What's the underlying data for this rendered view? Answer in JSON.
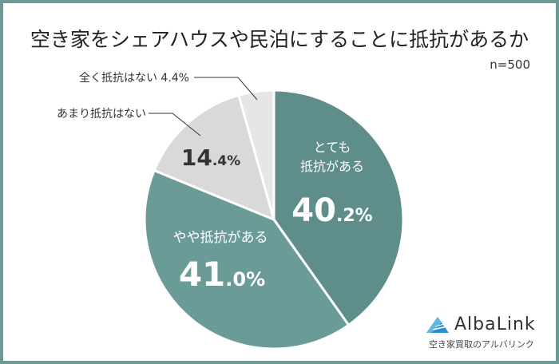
{
  "title": "空き家をシェアハウスや民泊にすることに抵抗があるか",
  "sample_size": "n=500",
  "colors": {
    "border": "#6b9995",
    "slice_1": "#5f8d89",
    "slice_2": "#6a9b97",
    "slice_3": "#d9d9d9",
    "slice_4": "#e6e6e6"
  },
  "labels": {
    "s1_line1": "とても",
    "s1_line2": "抵抗がある",
    "s1_big": "40",
    "s1_small": ".2%",
    "s2_line1": "やや抵抗がある",
    "s2_big": "41",
    "s2_small": ".0%",
    "s3_callout": "あまり抵抗はない",
    "s3_big": "14",
    "s3_small": ".4%",
    "s4_callout": "全く抵抗はない 4.4%"
  },
  "logo": {
    "name": "AlbaLink",
    "tagline": "空き家買取のアルバリンク"
  },
  "chart_data": {
    "type": "pie",
    "title": "空き家をシェアハウスや民泊にすることに抵抗があるか",
    "note": "n=500",
    "categories": [
      "とても抵抗がある",
      "やや抵抗がある",
      "あまり抵抗はない",
      "全く抵抗はない"
    ],
    "values": [
      40.2,
      41.0,
      14.4,
      4.4
    ],
    "unit": "%",
    "start_angle": "12 o'clock",
    "direction": "clockwise",
    "legend": "none (direct labels)"
  }
}
